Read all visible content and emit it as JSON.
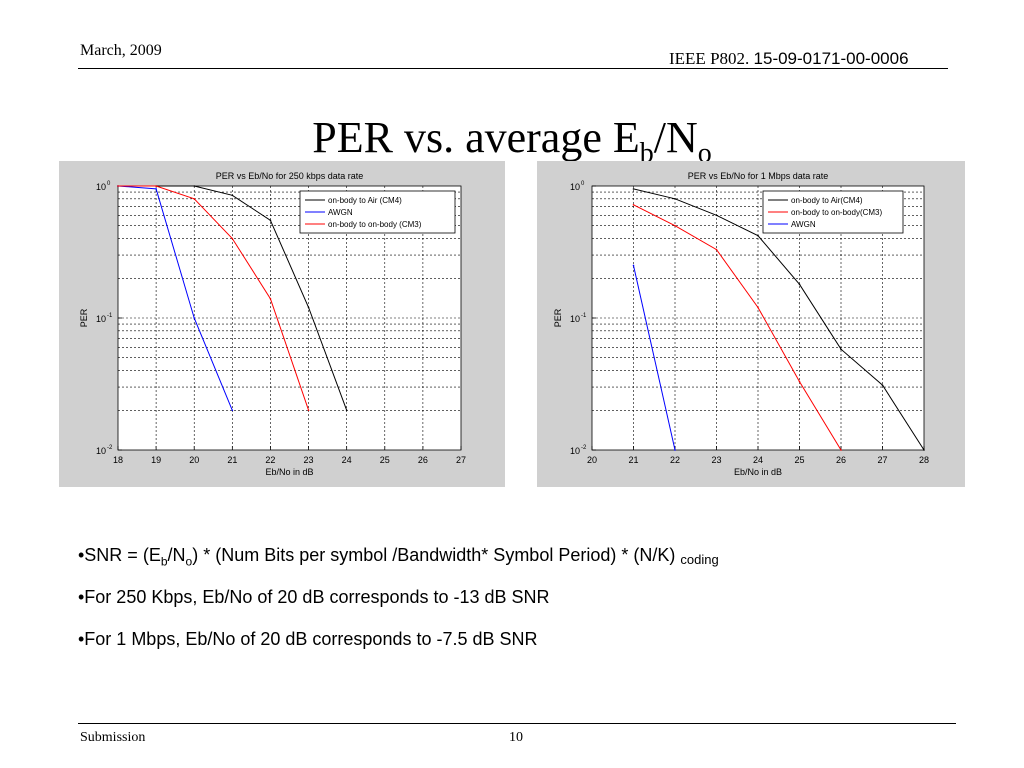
{
  "header": {
    "date": "March, 2009",
    "doc_prefix": "IEEE P802.",
    "doc_id": "15-09-0171-00-0006"
  },
  "title": {
    "main": "PER vs. average E",
    "sub1": "b",
    "slash": "/N",
    "sub2": "o"
  },
  "bullets": {
    "b1": {
      "prefix": "•SNR = (E",
      "sub1": "b",
      "mid1": "/N",
      "sub2": "o",
      "mid2": ") * (Num Bits per symbol /Bandwidth* Symbol Period) * (N/K) ",
      "sub3": "coding"
    },
    "b2": "•For 250 Kbps, Eb/No of 20 dB corresponds to -13 dB SNR",
    "b3": "•For 1 Mbps, Eb/No of 20 dB corresponds to -7.5 dB SNR"
  },
  "footer": {
    "left": "Submission",
    "page": "10"
  },
  "colors": {
    "black_series": "#000000",
    "blue_series": "#0000ff",
    "red_series": "#ff0000",
    "panel_bg": "#d0d0d0"
  },
  "chart_data": [
    {
      "type": "line",
      "title": "PER vs Eb/No for 250 kbps data rate",
      "xlabel": "Eb/No in dB",
      "ylabel": "PER",
      "xlim": [
        18,
        27
      ],
      "ylim": [
        0.01,
        1
      ],
      "yscale": "log",
      "xticks": [
        18,
        19,
        20,
        21,
        22,
        23,
        24,
        25,
        26,
        27
      ],
      "yticks": [
        {
          "value": 1,
          "base": "10",
          "exp": "0"
        },
        {
          "value": 0.1,
          "base": "10",
          "exp": "-1"
        },
        {
          "value": 0.01,
          "base": "10",
          "exp": "-2"
        }
      ],
      "grid": true,
      "legend_position": "top-right",
      "series": [
        {
          "name": "on-body to Air (CM4)",
          "color": "#000000",
          "x": [
            18,
            19,
            20,
            21,
            22,
            23,
            24
          ],
          "y": [
            1,
            1,
            1,
            0.85,
            0.55,
            0.12,
            0.02
          ]
        },
        {
          "name": "AWGN",
          "color": "#0000ff",
          "x": [
            18,
            19,
            20,
            21
          ],
          "y": [
            1,
            0.95,
            0.1,
            0.02
          ]
        },
        {
          "name": "on-body to on-body (CM3)",
          "color": "#ff0000",
          "x": [
            18,
            19,
            20,
            21,
            22,
            23
          ],
          "y": [
            1,
            1,
            0.8,
            0.4,
            0.14,
            0.02
          ]
        }
      ]
    },
    {
      "type": "line",
      "title": "PER vs Eb/No for 1 Mbps data rate",
      "xlabel": "Eb/No in dB",
      "ylabel": "PER",
      "xlim": [
        20,
        28
      ],
      "ylim": [
        0.01,
        1
      ],
      "yscale": "log",
      "xticks": [
        20,
        21,
        22,
        23,
        24,
        25,
        26,
        27,
        28
      ],
      "yticks": [
        {
          "value": 1,
          "base": "10",
          "exp": "0"
        },
        {
          "value": 0.1,
          "base": "10",
          "exp": "-1"
        },
        {
          "value": 0.01,
          "base": "10",
          "exp": "-2"
        }
      ],
      "grid": true,
      "legend_position": "top-right",
      "series": [
        {
          "name": "on-body to Air(CM4)",
          "color": "#000000",
          "x": [
            21,
            22,
            23,
            24,
            25,
            26,
            27,
            28
          ],
          "y": [
            0.95,
            0.8,
            0.6,
            0.42,
            0.18,
            0.058,
            0.031,
            0.01
          ]
        },
        {
          "name": "on-body to on-body(CM3)",
          "color": "#ff0000",
          "x": [
            21,
            22,
            23,
            24,
            25,
            26
          ],
          "y": [
            0.72,
            0.5,
            0.33,
            0.12,
            0.033,
            0.01
          ]
        },
        {
          "name": "AWGN",
          "color": "#0000ff",
          "x": [
            21,
            22
          ],
          "y": [
            0.25,
            0.01
          ]
        }
      ]
    }
  ]
}
